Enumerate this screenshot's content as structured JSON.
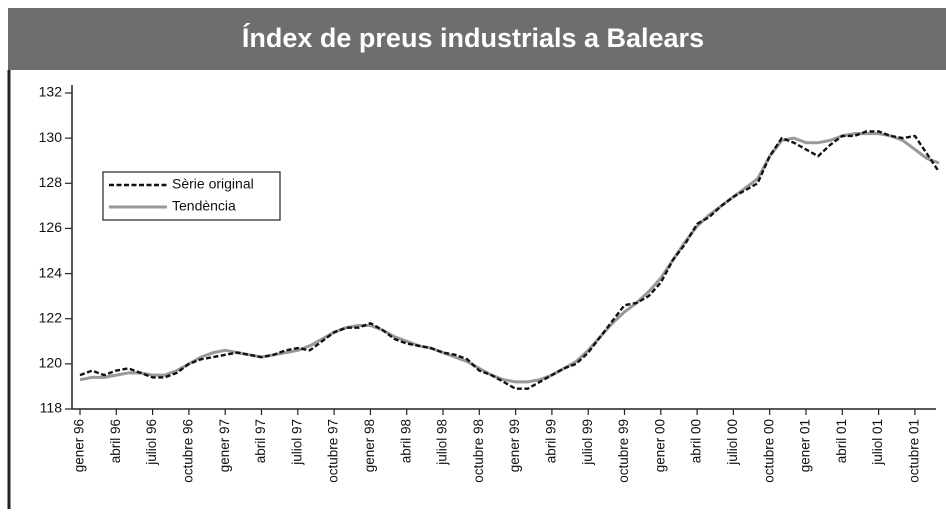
{
  "chart_data": {
    "type": "line",
    "title": "Índex de preus industrials a Balears",
    "categories": [
      "gener 96",
      null,
      null,
      "abril 96",
      null,
      null,
      "juliol 96",
      null,
      null,
      "octubre 96",
      null,
      null,
      "gener 97",
      null,
      null,
      "abril 97",
      null,
      null,
      "juliol 97",
      null,
      null,
      "octubre 97",
      null,
      null,
      "gener 98",
      null,
      null,
      "abril 98",
      null,
      null,
      "juliol 98",
      null,
      null,
      "octubre 98",
      null,
      null,
      "gener 99",
      null,
      null,
      "abril 99",
      null,
      null,
      "juliol 99",
      null,
      null,
      "octubre 99",
      null,
      null,
      "gener 00",
      null,
      null,
      "abril 00",
      null,
      null,
      "juliol 00",
      null,
      null,
      "octubre 00",
      null,
      null,
      "gener 01",
      null,
      null,
      "abril 01",
      null,
      null,
      "juliol 01",
      null,
      null,
      "octubre 01",
      null,
      null
    ],
    "series": [
      {
        "name": "Sèrie original",
        "color": "#111111",
        "dashed": true,
        "values": [
          119.5,
          119.7,
          119.5,
          119.7,
          119.8,
          119.6,
          119.4,
          119.4,
          119.6,
          120.0,
          120.2,
          120.3,
          120.4,
          120.5,
          120.4,
          120.3,
          120.4,
          120.6,
          120.7,
          120.6,
          121.0,
          121.4,
          121.6,
          121.6,
          121.8,
          121.5,
          121.1,
          120.9,
          120.8,
          120.7,
          120.5,
          120.4,
          120.2,
          119.7,
          119.5,
          119.2,
          118.9,
          118.9,
          119.2,
          119.5,
          119.8,
          120.0,
          120.5,
          121.2,
          121.9,
          122.6,
          122.7,
          123.0,
          123.6,
          124.6,
          125.3,
          126.2,
          126.5,
          127.0,
          127.4,
          127.7,
          128.0,
          129.2,
          130.0,
          129.8,
          129.5,
          129.2,
          129.7,
          130.1,
          130.1,
          130.3,
          130.3,
          130.1,
          130.0,
          130.1,
          129.3,
          128.5
        ]
      },
      {
        "name": "Tendència",
        "color": "#999999",
        "dashed": false,
        "values": [
          119.3,
          119.4,
          119.4,
          119.5,
          119.6,
          119.6,
          119.5,
          119.5,
          119.7,
          120.0,
          120.3,
          120.5,
          120.6,
          120.5,
          120.4,
          120.3,
          120.4,
          120.5,
          120.6,
          120.8,
          121.1,
          121.4,
          121.6,
          121.7,
          121.7,
          121.5,
          121.2,
          121.0,
          120.8,
          120.7,
          120.5,
          120.3,
          120.1,
          119.8,
          119.5,
          119.3,
          119.2,
          119.2,
          119.3,
          119.5,
          119.8,
          120.1,
          120.6,
          121.2,
          121.8,
          122.3,
          122.7,
          123.2,
          123.8,
          124.6,
          125.4,
          126.1,
          126.6,
          127.0,
          127.4,
          127.8,
          128.2,
          129.2,
          129.9,
          130.0,
          129.8,
          129.8,
          129.9,
          130.1,
          130.2,
          130.2,
          130.2,
          130.1,
          129.9,
          129.5,
          129.1,
          128.9
        ]
      }
    ],
    "ylim": [
      118,
      132
    ],
    "yticks": [
      118,
      120,
      122,
      124,
      126,
      128,
      130,
      132
    ],
    "grid": false,
    "legend": "upper left"
  }
}
